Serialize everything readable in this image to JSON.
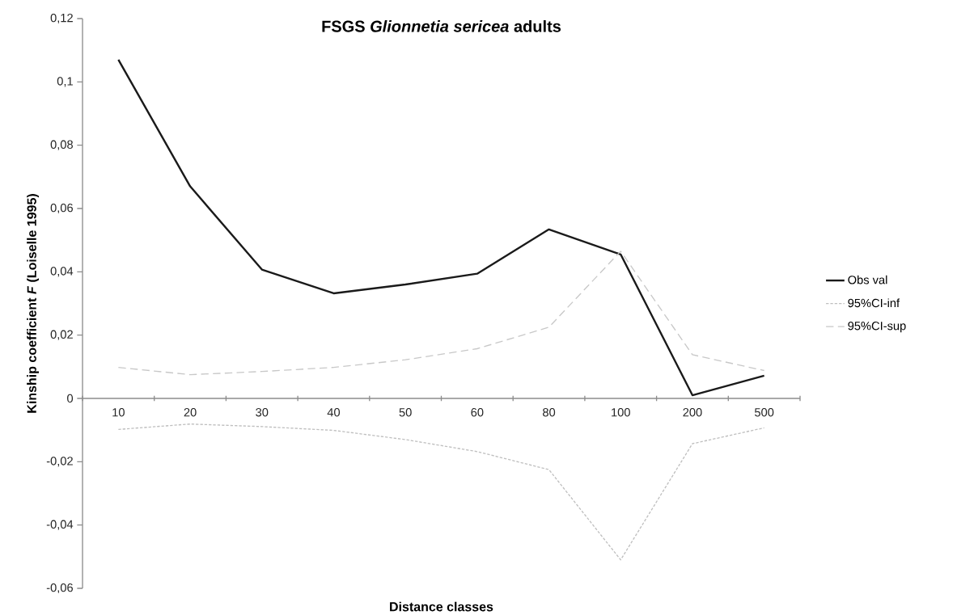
{
  "chart_data": {
    "type": "line",
    "title": "FSGS *Glionnetia sericea* adults",
    "xlabel": "Distance classes",
    "ylabel": "Kinship coefficient *F* (Loiselle 1995)",
    "categories": [
      "10",
      "20",
      "30",
      "40",
      "50",
      "60",
      "80",
      "100",
      "200",
      "500"
    ],
    "series": [
      {
        "name": "Obs val",
        "color": "#1a1a1a",
        "line_style": "solid",
        "values": [
          0.107,
          0.067,
          0.0407,
          0.0332,
          0.036,
          0.0394,
          0.0534,
          0.0455,
          0.001,
          0.0072
        ]
      },
      {
        "name": "95%CI-inf",
        "color": "#bfbfbf",
        "line_style": "dotted",
        "values": [
          -0.0098,
          -0.0081,
          -0.0089,
          -0.0101,
          -0.013,
          -0.0168,
          -0.0225,
          -0.051,
          -0.0143,
          -0.0093
        ]
      },
      {
        "name": "95%CI-sup",
        "color": "#c8c8c8",
        "line_style": "dashed",
        "values": [
          0.0098,
          0.0075,
          0.0085,
          0.0098,
          0.0122,
          0.0157,
          0.0225,
          0.0465,
          0.0138,
          0.0088
        ]
      }
    ],
    "ylim": [
      -0.06,
      0.12
    ],
    "yticks": [
      {
        "value": -0.06,
        "label": "-0,06"
      },
      {
        "value": -0.04,
        "label": "-0,04"
      },
      {
        "value": -0.02,
        "label": "-0,02"
      },
      0,
      {
        "value": 0.02,
        "label": "0,02"
      },
      {
        "value": 0.04,
        "label": "0,04"
      },
      {
        "value": 0.06,
        "label": "0,06"
      },
      {
        "value": 0.08,
        "label": "0,08"
      },
      {
        "value": 0.1,
        "label": "0,1"
      },
      {
        "value": 0.12,
        "label": "0,12"
      }
    ],
    "legend": "right",
    "grid": false,
    "marker": "none"
  }
}
